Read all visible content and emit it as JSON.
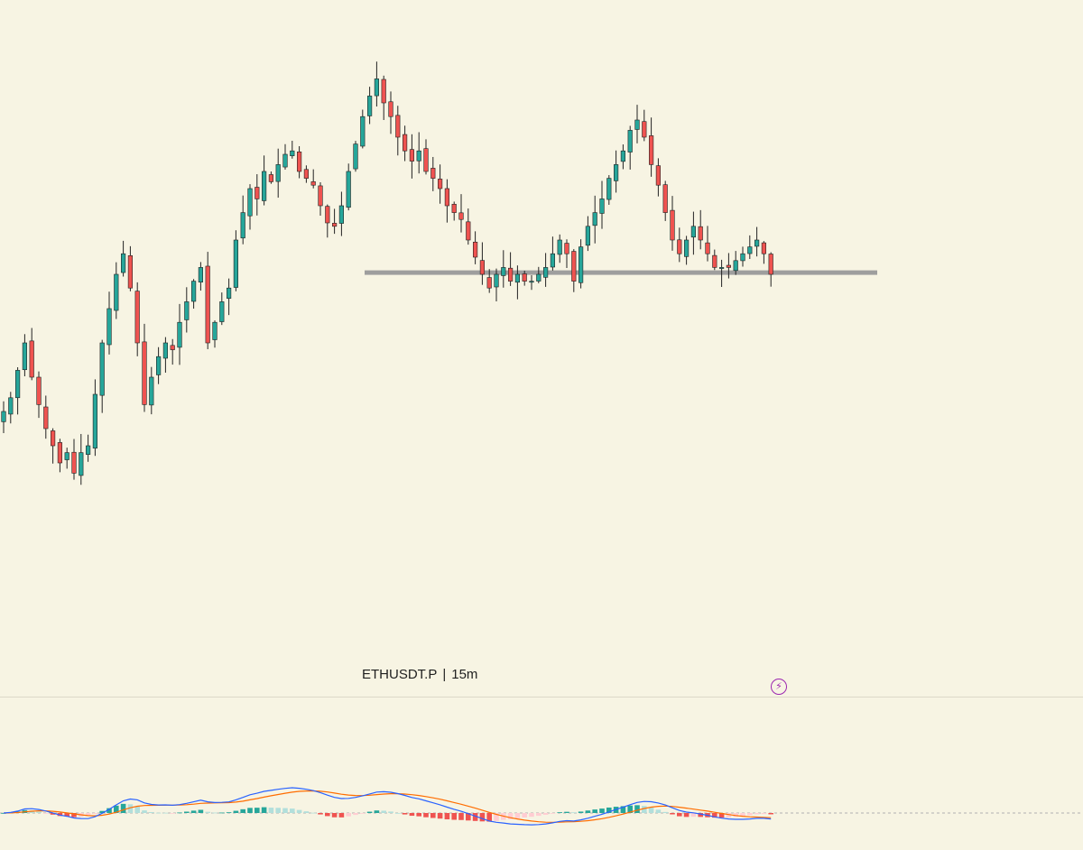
{
  "symbol": "ETHUSDT.P",
  "separator": "|",
  "timeframe": "15m",
  "colors": {
    "background": "#f7f4e3",
    "up_candle": "#26a69a",
    "down_candle": "#ef5350",
    "wick": "#222222",
    "support_line": "#9e9e9e",
    "macd_line": "#2962ff",
    "signal_line": "#ff6d00",
    "hist_up_strong": "#26a69a",
    "hist_up_weak": "#b2dfdb",
    "hist_down_strong": "#ef5350",
    "hist_down_weak": "#ffcdd2",
    "bolt_icon": "#9c27b0"
  },
  "icons": {
    "alert": "lightning-bolt-icon"
  },
  "chart_data": [
    {
      "type": "candlestick",
      "title": "",
      "closes": [
        280,
        284,
        292,
        300,
        290,
        282,
        275,
        270,
        265,
        268,
        262,
        268,
        270,
        285,
        300,
        310,
        320,
        326,
        316,
        300,
        282,
        290,
        296,
        300,
        298,
        306,
        312,
        318,
        322,
        300,
        306,
        312,
        316,
        330,
        338,
        345,
        342,
        350,
        347,
        352,
        355,
        356,
        350,
        348,
        346,
        340,
        335,
        334,
        340,
        350,
        358,
        366,
        372,
        377,
        370,
        366,
        360,
        356,
        353,
        356,
        350,
        348,
        345,
        340,
        338,
        336,
        330,
        325,
        320,
        316,
        320,
        322,
        318,
        320,
        318,
        318,
        320,
        322,
        326,
        330,
        326,
        318,
        328,
        334,
        338,
        342,
        348,
        352,
        356,
        362,
        365,
        360,
        352,
        346,
        338,
        330,
        326,
        330,
        334,
        330,
        326,
        322,
        322,
        322,
        324,
        326,
        328,
        330,
        326,
        320
      ],
      "support_level": 320.5,
      "ylim": [
        200,
        400
      ],
      "grid": false
    },
    {
      "type": "macd",
      "title": "",
      "components": [
        "macd_line",
        "signal_line",
        "histogram"
      ],
      "ylim": [
        -1,
        1
      ]
    }
  ]
}
